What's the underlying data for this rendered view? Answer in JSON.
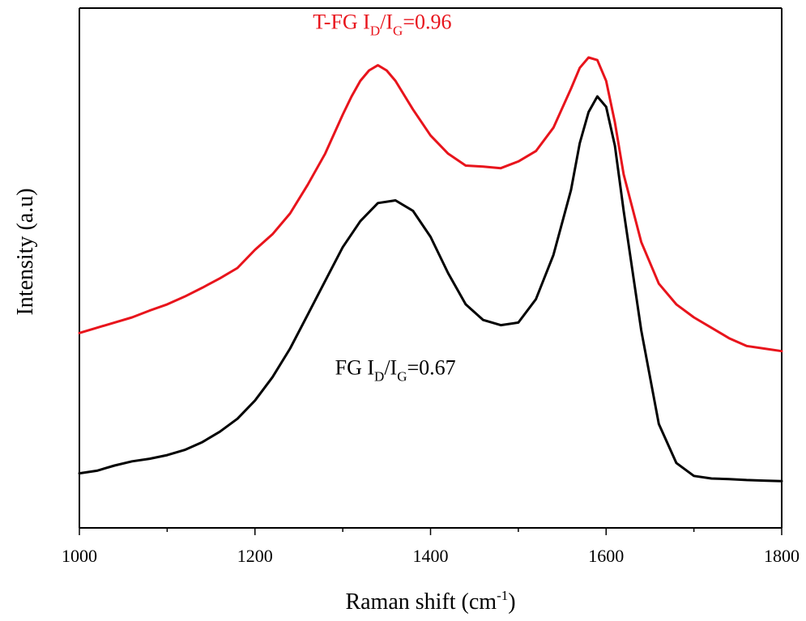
{
  "chart_data": {
    "type": "line",
    "title": "",
    "xlabel": "Raman shift (cm",
    "xlabel_sup": "-1",
    "xlabel_suffix": ")",
    "ylabel": "Intensity (a.u)",
    "xlim": [
      1000,
      1800
    ],
    "ylim": [
      0,
      1
    ],
    "x_ticks": [
      1000,
      1200,
      1400,
      1600,
      1800
    ],
    "x_tick_labels": [
      "1000",
      "1200",
      "1400",
      "1600",
      "1800"
    ],
    "x_minor_step": 100,
    "grid": false,
    "legend": "none",
    "series": [
      {
        "color": "#e8141c",
        "x": [
          1000,
          1020,
          1040,
          1060,
          1080,
          1100,
          1120,
          1140,
          1160,
          1180,
          1200,
          1220,
          1240,
          1260,
          1280,
          1300,
          1310,
          1320,
          1330,
          1340,
          1350,
          1360,
          1380,
          1400,
          1420,
          1440,
          1460,
          1480,
          1500,
          1520,
          1540,
          1560,
          1570,
          1580,
          1590,
          1600,
          1610,
          1620,
          1640,
          1660,
          1680,
          1700,
          1720,
          1740,
          1760,
          1780,
          1800
        ],
        "y": [
          0.375,
          0.385,
          0.395,
          0.405,
          0.418,
          0.43,
          0.445,
          0.462,
          0.48,
          0.5,
          0.535,
          0.565,
          0.605,
          0.66,
          0.72,
          0.795,
          0.83,
          0.86,
          0.88,
          0.89,
          0.88,
          0.86,
          0.805,
          0.755,
          0.72,
          0.697,
          0.695,
          0.692,
          0.705,
          0.725,
          0.77,
          0.845,
          0.885,
          0.905,
          0.9,
          0.86,
          0.78,
          0.68,
          0.55,
          0.47,
          0.43,
          0.405,
          0.385,
          0.365,
          0.35,
          0.345,
          0.34
        ]
      },
      {
        "color": "#000000",
        "x": [
          1000,
          1020,
          1040,
          1060,
          1080,
          1100,
          1120,
          1140,
          1160,
          1180,
          1200,
          1220,
          1240,
          1260,
          1280,
          1300,
          1320,
          1340,
          1360,
          1380,
          1400,
          1420,
          1440,
          1460,
          1480,
          1500,
          1520,
          1540,
          1560,
          1570,
          1580,
          1590,
          1600,
          1610,
          1620,
          1640,
          1660,
          1680,
          1700,
          1720,
          1740,
          1760,
          1780,
          1800
        ],
        "y": [
          0.105,
          0.11,
          0.12,
          0.128,
          0.133,
          0.14,
          0.15,
          0.165,
          0.185,
          0.21,
          0.245,
          0.29,
          0.345,
          0.41,
          0.475,
          0.54,
          0.59,
          0.625,
          0.63,
          0.61,
          0.56,
          0.49,
          0.43,
          0.4,
          0.39,
          0.395,
          0.44,
          0.525,
          0.65,
          0.74,
          0.8,
          0.83,
          0.81,
          0.735,
          0.61,
          0.38,
          0.2,
          0.125,
          0.1,
          0.095,
          0.094,
          0.092,
          0.091,
          0.09
        ]
      }
    ],
    "annotations": [
      {
        "series_index": 0,
        "color": "#e8141c",
        "prefix": "T-FG  I",
        "sub1": "D",
        "mid": "/I",
        "sub2": "G",
        "suffix": "=0.96",
        "x": 1345,
        "y": 0.96
      },
      {
        "series_index": 1,
        "color": "#000000",
        "prefix": "FG  I",
        "sub1": "D",
        "mid": "/I",
        "sub2": "G",
        "suffix": "=0.67",
        "x": 1360,
        "y": 0.295
      }
    ]
  }
}
